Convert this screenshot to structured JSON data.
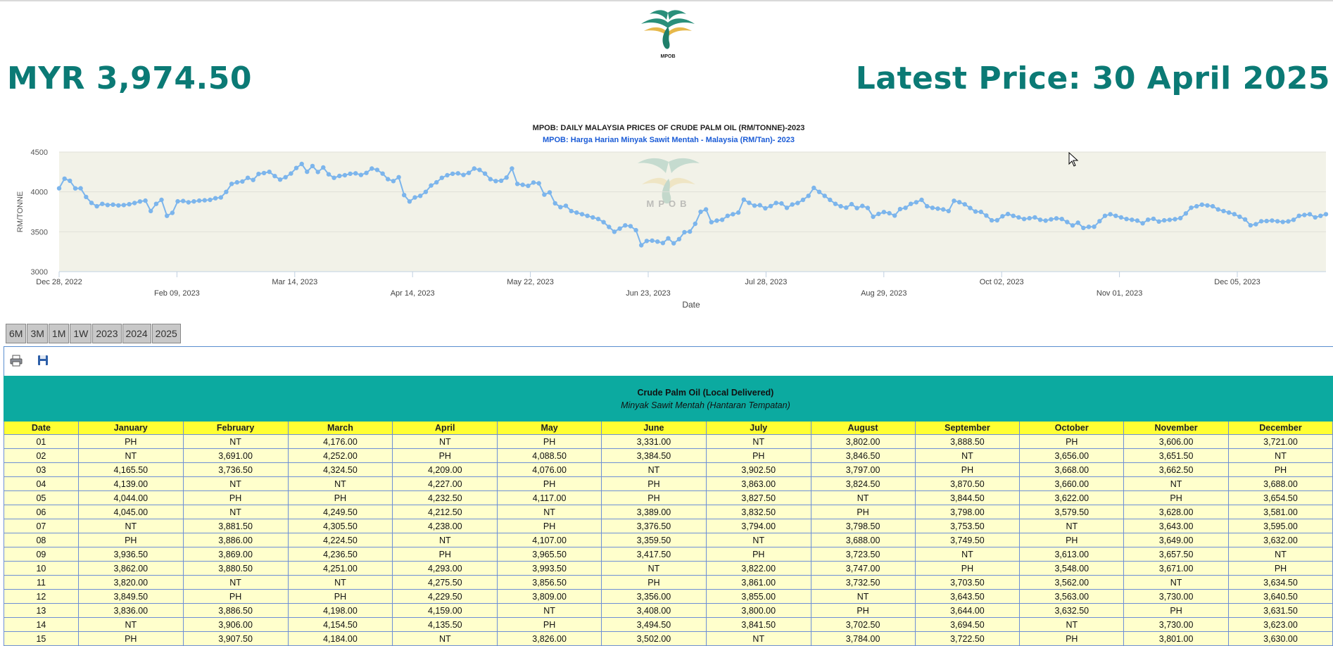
{
  "header": {
    "logo_text": "MPOB",
    "current_price": "MYR 3,974.50",
    "latest_label": "Latest Price: 30 April 2025"
  },
  "chart": {
    "watermark": "MPOB",
    "title": "MPOB: DAILY MALAYSIA PRICES OF CRUDE PALM OIL (RM/TONNE)-2023",
    "subtitle": "MPOB: Harga Harian Minyak Sawit Mentah - Malaysia (RM/Tan)- 2023"
  },
  "chart_data": {
    "type": "line",
    "title": "MPOB: DAILY MALAYSIA PRICES OF CRUDE PALM OIL (RM/TONNE)-2023",
    "subtitle": "MPOB: Harga Harian Minyak Sawit Mentah - Malaysia (RM/Tan)- 2023",
    "xlabel": "Date",
    "ylabel": "RM/TONNE",
    "ylim": [
      3000,
      4500
    ],
    "yticks": [
      3000,
      3500,
      4000,
      4500
    ],
    "xticks": [
      "Dec 28, 2022",
      "Feb 09, 2023",
      "Mar 14, 2023",
      "Apr 14, 2023",
      "May 22, 2023",
      "Jun 23, 2023",
      "Jul 28, 2023",
      "Aug 29, 2023",
      "Oct 02, 2023",
      "Nov 01, 2023",
      "Dec 05, 2023"
    ],
    "grid": true,
    "legend": "none",
    "series": [
      {
        "color": "#7cb5ec",
        "values": [
          4045,
          4165.5,
          4139,
          4044,
          4045,
          3936.5,
          3862,
          3820,
          3849.5,
          3836,
          3840,
          3830,
          3835,
          3845,
          3860,
          3880,
          3890,
          3760,
          3850,
          3900,
          3700,
          3736.5,
          3881.5,
          3886,
          3869,
          3880.5,
          3890,
          3895,
          3900,
          3920,
          3930,
          4000,
          4100,
          4120,
          4130,
          4176,
          4150,
          4224.5,
          4236.5,
          4251,
          4198,
          4154.5,
          4184,
          4230,
          4300,
          4350,
          4252,
          4324.5,
          4249.5,
          4305.5,
          4220,
          4176,
          4200,
          4209,
          4227,
          4232.5,
          4212.5,
          4238,
          4293,
          4275.5,
          4229.5,
          4159,
          4135.5,
          4184,
          3960,
          3880,
          3930,
          3950,
          4000,
          4080,
          4120,
          4176,
          4209,
          4227,
          4232.5,
          4212.5,
          4238,
          4293,
          4275.5,
          4229.5,
          4159,
          4135.5,
          4140,
          4180,
          4293,
          4100,
          4088.5,
          4076,
          4117,
          4107,
          3965.5,
          3993.5,
          3856.5,
          3809,
          3826,
          3760,
          3740,
          3720,
          3700,
          3680,
          3660,
          3620,
          3560,
          3500,
          3540,
          3580,
          3570,
          3520,
          3331,
          3384.5,
          3389,
          3376.5,
          3359.5,
          3417.5,
          3356,
          3408,
          3494.5,
          3502,
          3600,
          3750,
          3780,
          3620,
          3640,
          3650,
          3700,
          3720,
          3740,
          3902.5,
          3863,
          3827.5,
          3832.5,
          3794,
          3822,
          3861,
          3855,
          3800,
          3841.5,
          3860,
          3900,
          3950,
          4050,
          4000,
          3950,
          3900,
          3850,
          3820,
          3802,
          3846.5,
          3797,
          3824.5,
          3798.5,
          3688,
          3723.5,
          3747,
          3732.5,
          3702.5,
          3784,
          3800,
          3850,
          3870,
          3900,
          3820,
          3800,
          3790,
          3780,
          3760,
          3888.5,
          3870.5,
          3844.5,
          3798,
          3753.5,
          3749.5,
          3703.5,
          3643.5,
          3644,
          3694.5,
          3722.5,
          3700,
          3680,
          3660,
          3670,
          3680,
          3650,
          3640,
          3656,
          3668,
          3660,
          3622,
          3579.5,
          3613,
          3548,
          3562,
          3563,
          3632.5,
          3700,
          3720,
          3700,
          3680,
          3660,
          3650,
          3640,
          3606,
          3651.5,
          3662.5,
          3628,
          3643,
          3649,
          3657.5,
          3671,
          3730,
          3801,
          3820,
          3840,
          3830,
          3820,
          3780,
          3760,
          3740,
          3721,
          3688,
          3654.5,
          3581,
          3595,
          3632,
          3634.5,
          3640.5,
          3631.5,
          3623,
          3630,
          3650,
          3700,
          3710,
          3720,
          3680,
          3700,
          3720
        ]
      }
    ]
  },
  "ranges": [
    "6M",
    "3M",
    "1M",
    "1W",
    "2023",
    "2024",
    "2025"
  ],
  "toolbar": {
    "print_icon": "print-icon",
    "save_icon": "save-icon"
  },
  "table": {
    "title": "Crude Palm Oil (Local Delivered)",
    "subtitle": "Minyak Sawit Mentah (Hantaran Tempatan)",
    "columns": [
      "Date",
      "January",
      "February",
      "March",
      "April",
      "May",
      "June",
      "July",
      "August",
      "September",
      "October",
      "November",
      "December"
    ],
    "rows": [
      [
        "01",
        "PH",
        "NT",
        "4,176.00",
        "NT",
        "PH",
        "3,331.00",
        "NT",
        "3,802.00",
        "3,888.50",
        "PH",
        "3,606.00",
        "3,721.00"
      ],
      [
        "02",
        "NT",
        "3,691.00",
        "4,252.00",
        "PH",
        "4,088.50",
        "3,384.50",
        "PH",
        "3,846.50",
        "NT",
        "3,656.00",
        "3,651.50",
        "NT"
      ],
      [
        "03",
        "4,165.50",
        "3,736.50",
        "4,324.50",
        "4,209.00",
        "4,076.00",
        "NT",
        "3,902.50",
        "3,797.00",
        "PH",
        "3,668.00",
        "3,662.50",
        "PH"
      ],
      [
        "04",
        "4,139.00",
        "NT",
        "NT",
        "4,227.00",
        "PH",
        "PH",
        "3,863.00",
        "3,824.50",
        "3,870.50",
        "3,660.00",
        "NT",
        "3,688.00"
      ],
      [
        "05",
        "4,044.00",
        "PH",
        "PH",
        "4,232.50",
        "4,117.00",
        "PH",
        "3,827.50",
        "NT",
        "3,844.50",
        "3,622.00",
        "PH",
        "3,654.50"
      ],
      [
        "06",
        "4,045.00",
        "NT",
        "4,249.50",
        "4,212.50",
        "NT",
        "3,389.00",
        "3,832.50",
        "PH",
        "3,798.00",
        "3,579.50",
        "3,628.00",
        "3,581.00"
      ],
      [
        "07",
        "NT",
        "3,881.50",
        "4,305.50",
        "4,238.00",
        "PH",
        "3,376.50",
        "3,794.00",
        "3,798.50",
        "3,753.50",
        "NT",
        "3,643.00",
        "3,595.00"
      ],
      [
        "08",
        "PH",
        "3,886.00",
        "4,224.50",
        "NT",
        "4,107.00",
        "3,359.50",
        "NT",
        "3,688.00",
        "3,749.50",
        "PH",
        "3,649.00",
        "3,632.00"
      ],
      [
        "09",
        "3,936.50",
        "3,869.00",
        "4,236.50",
        "PH",
        "3,965.50",
        "3,417.50",
        "PH",
        "3,723.50",
        "NT",
        "3,613.00",
        "3,657.50",
        "NT"
      ],
      [
        "10",
        "3,862.00",
        "3,880.50",
        "4,251.00",
        "4,293.00",
        "3,993.50",
        "NT",
        "3,822.00",
        "3,747.00",
        "PH",
        "3,548.00",
        "3,671.00",
        "PH"
      ],
      [
        "11",
        "3,820.00",
        "NT",
        "NT",
        "4,275.50",
        "3,856.50",
        "PH",
        "3,861.00",
        "3,732.50",
        "3,703.50",
        "3,562.00",
        "NT",
        "3,634.50"
      ],
      [
        "12",
        "3,849.50",
        "PH",
        "PH",
        "4,229.50",
        "3,809.00",
        "3,356.00",
        "3,855.00",
        "NT",
        "3,643.50",
        "3,563.00",
        "3,730.00",
        "3,640.50"
      ],
      [
        "13",
        "3,836.00",
        "3,886.50",
        "4,198.00",
        "4,159.00",
        "NT",
        "3,408.00",
        "3,800.00",
        "PH",
        "3,644.00",
        "3,632.50",
        "PH",
        "3,631.50"
      ],
      [
        "14",
        "NT",
        "3,906.00",
        "4,154.50",
        "4,135.50",
        "PH",
        "3,494.50",
        "3,841.50",
        "3,702.50",
        "3,694.50",
        "NT",
        "3,730.00",
        "3,623.00"
      ],
      [
        "15",
        "PH",
        "3,907.50",
        "4,184.00",
        "NT",
        "3,826.00",
        "3,502.00",
        "NT",
        "3,784.00",
        "3,722.50",
        "PH",
        "3,801.00",
        "3,630.00"
      ]
    ]
  }
}
